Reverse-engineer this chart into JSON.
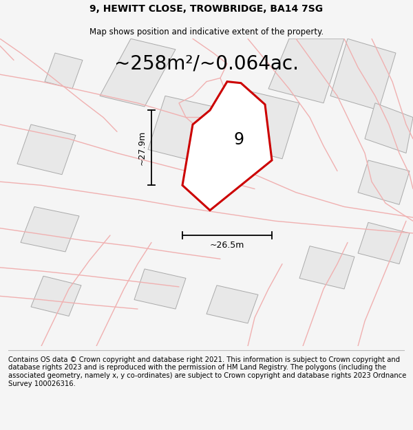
{
  "title": "9, HEWITT CLOSE, TROWBRIDGE, BA14 7SG",
  "subtitle": "Map shows position and indicative extent of the property.",
  "area_text": "~258m²/~0.064ac.",
  "plot_number": "9",
  "dim_width": "~26.5m",
  "dim_height": "~27.9m",
  "footer": "Contains OS data © Crown copyright and database right 2021. This information is subject to Crown copyright and database rights 2023 and is reproduced with the permission of HM Land Registry. The polygons (including the associated geometry, namely x, y co-ordinates) are subject to Crown copyright and database rights 2023 Ordnance Survey 100026316.",
  "bg_color": "#f5f5f5",
  "map_bg": "#ffffff",
  "plot_fill": "none",
  "plot_edge": "#cc0000",
  "neighbor_fill": "#e8e8e8",
  "neighbor_edge": "#aaaaaa",
  "road_color": "#f0b0b0",
  "title_fontsize": 10,
  "subtitle_fontsize": 8.5,
  "area_fontsize": 20,
  "footer_fontsize": 7.2,
  "plot_linewidth": 2.2,
  "neighbor_linewidth": 0.7,
  "road_linewidth": 1.0
}
